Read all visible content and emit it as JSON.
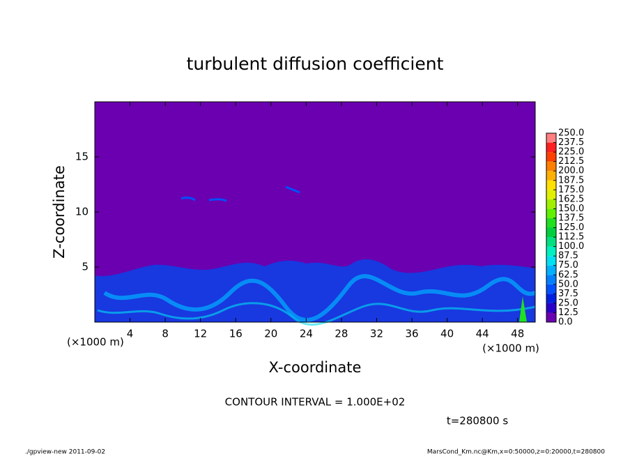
{
  "chart_data": {
    "type": "contour",
    "title": "turbulent diffusion coefficient",
    "xlabel": "X-coordinate",
    "ylabel": "Z-coordinate",
    "xunit": "(×1000 m)",
    "xlim": [
      0,
      50
    ],
    "xticks": [
      4,
      8,
      12,
      16,
      20,
      24,
      28,
      32,
      36,
      40,
      44,
      48
    ],
    "ylim": [
      0,
      20
    ],
    "yticks": [
      5,
      10,
      15
    ],
    "colorbar": {
      "lim": [
        0,
        250
      ],
      "ticks": [
        {
          "value": 0,
          "label": "0.0"
        },
        12.5,
        {
          "value": 25,
          "label": "25.0"
        },
        37.5,
        {
          "value": 50,
          "label": "50.0"
        },
        62.5,
        {
          "value": 75,
          "label": "75.0"
        },
        87.5,
        {
          "value": 100,
          "label": "100.0"
        },
        112.5,
        {
          "value": 125,
          "label": "125.0"
        },
        137.5,
        {
          "value": 150,
          "label": "150.0"
        },
        162.5,
        {
          "value": 175,
          "label": "175.0"
        },
        187.5,
        {
          "value": 200,
          "label": "200.0"
        },
        212.5,
        {
          "value": 225,
          "label": "225.0"
        },
        237.5,
        {
          "value": 250,
          "label": "250.0"
        }
      ],
      "colors": [
        "#6a00b0",
        "#2800c8",
        "#0020e0",
        "#0050ff",
        "#0080ff",
        "#00b0ff",
        "#00e0f0",
        "#00f0c0",
        "#00e080",
        "#00d040",
        "#20e020",
        "#60f000",
        "#a0f000",
        "#e0f000",
        "#ffe000",
        "#ffb000",
        "#ff8000",
        "#ff4000",
        "#ff2020",
        "#ff8080"
      ]
    },
    "contour_interval": "CONTOUR INTERVAL = 1.000E+02",
    "time_label": "t=280800 s",
    "footer_left": "./gpview-new  2011-09-02",
    "footer_right": "MarsCond_Km.nc@Km,x=0:50000,z=0:20000,t=280800"
  }
}
